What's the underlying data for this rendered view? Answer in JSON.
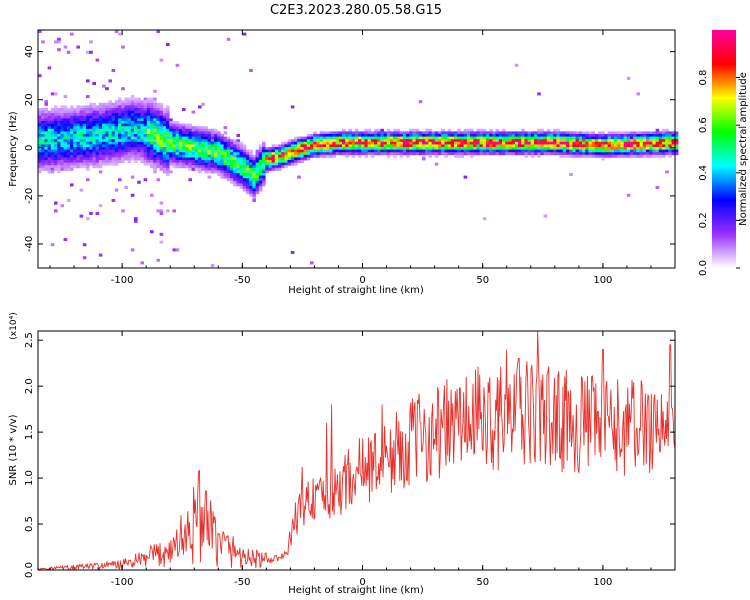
{
  "title": "C2E3.2023.280.05.58.G15",
  "chart_data": [
    {
      "type": "heatmap",
      "xlabel": "Height of straight line (km)",
      "ylabel": "Frequency (Hz)",
      "xlim": [
        -135,
        130
      ],
      "ylim": [
        -50,
        49
      ],
      "x_ticks": [
        -100,
        -50,
        0,
        50,
        100
      ],
      "y_ticks": [
        -40,
        -20,
        0,
        20,
        40
      ],
      "colorbar": {
        "label": "Normalized spectral amplitude",
        "range": [
          0,
          1
        ],
        "ticks": [
          "0.0",
          "0.2",
          "0.4",
          "0.6",
          "0.8"
        ],
        "colormap": [
          "#ffffff",
          "#9b30ff",
          "#0000ff",
          "#00ffff",
          "#00ff00",
          "#ffff00",
          "#ff0000",
          "#ff00a0"
        ]
      },
      "ridge": {
        "x": [
          -135,
          -120,
          -105,
          -95,
          -88,
          -80,
          -70,
          -60,
          -50,
          -45,
          -40,
          -35,
          -30,
          -20,
          -10,
          0,
          20,
          50,
          80,
          100,
          130
        ],
        "y": [
          3,
          4,
          6,
          8,
          6,
          2,
          0,
          -2,
          -8,
          -12,
          -5,
          -4,
          -2,
          1,
          2,
          2,
          2,
          2,
          2,
          1,
          2
        ]
      }
    },
    {
      "type": "line",
      "xlabel": "Height of straight line (km)",
      "ylabel": "SNR (10 * v/v)",
      "y_multiplier": "(x10⁴)",
      "xlim": [
        -135,
        130
      ],
      "ylim": [
        0,
        2.6
      ],
      "x_ticks": [
        -100,
        -50,
        0,
        50,
        100
      ],
      "y_ticks": [
        "0.0",
        "0.5",
        "1.0",
        "1.5",
        "2.0",
        "2.5"
      ],
      "series": [
        {
          "color": "#e8302a",
          "x": [
            -135,
            -120,
            -100,
            -90,
            -80,
            -72,
            -68,
            -60,
            -50,
            -45,
            -40,
            -32,
            -28,
            -22,
            -18,
            -12,
            -8,
            -3,
            0,
            5,
            10,
            15,
            20,
            30,
            40,
            50,
            60,
            70,
            80,
            90,
            100,
            110,
            120,
            130
          ],
          "y": [
            0.01,
            0.03,
            0.06,
            0.12,
            0.22,
            0.42,
            0.55,
            0.3,
            0.15,
            0.12,
            0.1,
            0.15,
            0.55,
            0.8,
            0.75,
            0.8,
            0.95,
            1.05,
            1.1,
            1.15,
            1.2,
            1.3,
            1.4,
            1.5,
            1.6,
            1.65,
            1.65,
            1.7,
            1.65,
            1.6,
            1.55,
            1.55,
            1.6,
            1.55
          ],
          "peaks": [
            {
              "x": -68,
              "y": 1.08
            },
            {
              "x": -25,
              "y": 1.12
            },
            {
              "x": -15,
              "y": 1.6
            },
            {
              "x": -13,
              "y": 1.8
            },
            {
              "x": 8,
              "y": 1.8
            },
            {
              "x": 60,
              "y": 2.4
            },
            {
              "x": 65,
              "y": 2.3
            },
            {
              "x": 73,
              "y": 2.6
            },
            {
              "x": 100,
              "y": 2.4
            },
            {
              "x": 128,
              "y": 2.45
            }
          ]
        }
      ]
    }
  ]
}
